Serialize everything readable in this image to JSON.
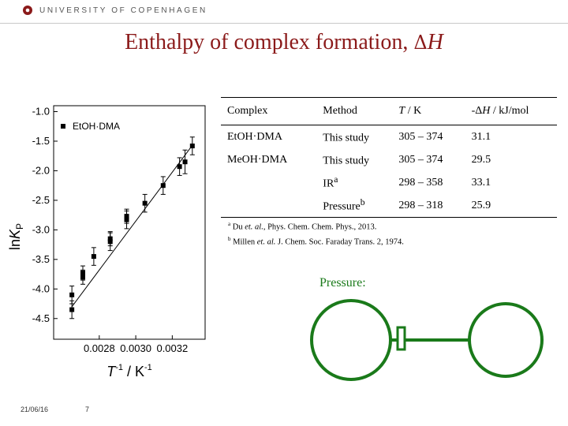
{
  "header": {
    "university": "UNIVERSITY OF COPENHAGEN",
    "brand_color": "#8b1a1a"
  },
  "slide": {
    "title_text": "Enthalpy of complex formation, ",
    "title_delta": "Δ",
    "title_var": "H"
  },
  "chart_data": {
    "type": "scatter",
    "x": [
      0.00265,
      0.00265,
      0.00271,
      0.00271,
      0.00277,
      0.00286,
      0.00286,
      0.00295,
      0.00295,
      0.00305,
      0.00315,
      0.00324,
      0.00327,
      0.00331
    ],
    "y": [
      -4.35,
      -4.1,
      -3.8,
      -3.73,
      -3.45,
      -3.2,
      -3.15,
      -2.83,
      -2.77,
      -2.55,
      -2.25,
      -1.93,
      -1.85,
      -1.58
    ],
    "y_err": [
      0.15,
      0.15,
      0.12,
      0.12,
      0.15,
      0.15,
      0.12,
      0.15,
      0.12,
      0.15,
      0.15,
      0.15,
      0.2,
      0.15
    ],
    "fit_line": {
      "x": [
        0.00265,
        0.00331
      ],
      "y": [
        -4.3,
        -1.57
      ]
    },
    "series": [
      {
        "name": "EtOH·DMA"
      }
    ],
    "xlabel": "T⁻¹ / K⁻¹",
    "ylabel": "lnKP",
    "ylabel_main": "ln",
    "ylabel_italic": "K",
    "ylabel_sub": "P",
    "xlabel_main": "T",
    "xlabel_exp1": "-1",
    "xlabel_unit": " / K",
    "xlabel_exp2": "-1",
    "xlim": [
      0.00255,
      0.00338
    ],
    "ylim": [
      -4.85,
      -0.9
    ],
    "xticks": [
      0.0028,
      0.003,
      0.0032
    ],
    "xtick_labels": [
      "0.0028",
      "0.0030",
      "0.0032"
    ],
    "yticks": [
      -1.0,
      -1.5,
      -2.0,
      -2.5,
      -3.0,
      -3.5,
      -4.0,
      -4.5
    ],
    "ytick_labels": [
      "-1.0",
      "-1.5",
      "-2.0",
      "-2.5",
      "-3.0",
      "-3.5",
      "-4.0",
      "-4.5"
    ],
    "legend": "top-left",
    "grid": false
  },
  "table": {
    "headers": {
      "complex": "Complex",
      "method": "Method",
      "temp_var": "T",
      "temp_unit": " / K",
      "dh_prefix": "-Δ",
      "dh_var": "H",
      "dh_unit": " / kJ/mol"
    },
    "rows": [
      {
        "complex": "EtOH·DMA",
        "method": "This study",
        "method_sup": "",
        "temp": "305 – 374",
        "dh": "31.1"
      },
      {
        "complex": "MeOH·DMA",
        "method": "This study",
        "method_sup": "",
        "temp": "305 – 374",
        "dh": "29.5"
      },
      {
        "complex": "",
        "method": "IR",
        "method_sup": "a",
        "temp": "298 – 358",
        "dh": "33.1"
      },
      {
        "complex": "",
        "method": "Pressure",
        "method_sup": "b",
        "temp": "298 – 318",
        "dh": "25.9"
      }
    ]
  },
  "footnotes": {
    "a_mark": "a",
    "a_text1": " Du ",
    "a_italic": "et. al.",
    "a_text2": ", Phys. Chem. Chem. Phys., 2013.",
    "b_mark": "b",
    "b_text1": " Millen ",
    "b_italic": "et. al.",
    "b_text2": " J. Chem. Soc. Faraday Trans. 2, 1974."
  },
  "pressure": {
    "label": "Pressure:",
    "color": "#1a7a1a"
  },
  "footer": {
    "date": "21/06/16",
    "page": "7"
  }
}
